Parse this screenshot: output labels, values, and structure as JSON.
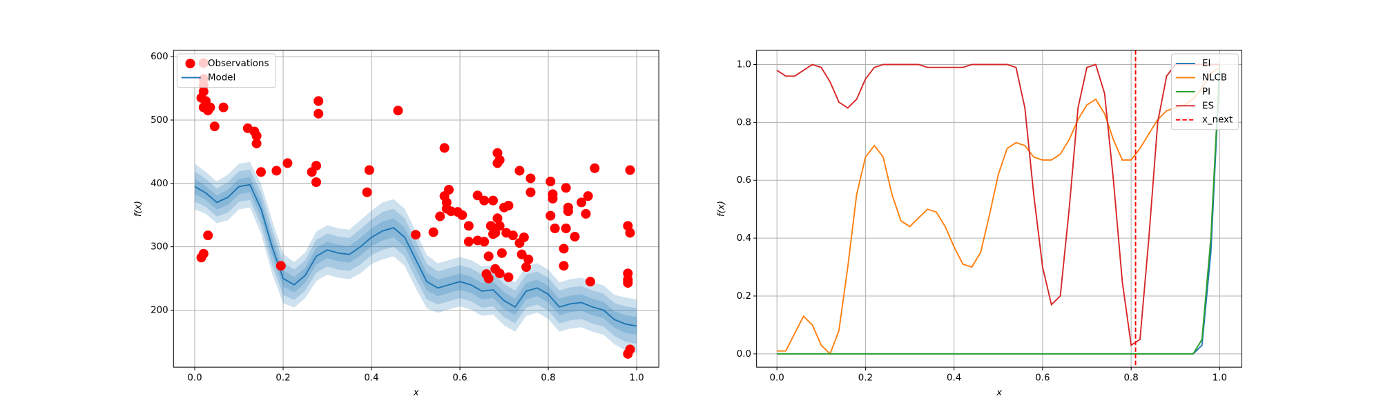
{
  "chart_data": [
    {
      "type": "scatter",
      "xlabel": "x",
      "ylabel": "f(x)",
      "xlim": [
        -0.048,
        1.05
      ],
      "ylim": [
        110,
        610
      ],
      "xticks": [
        {
          "value": 0,
          "label": "0.0"
        },
        {
          "value": 0.2,
          "label": "0.2"
        },
        {
          "value": 0.4,
          "label": "0.4"
        },
        {
          "value": 0.6,
          "label": "0.6"
        },
        {
          "value": 0.8,
          "label": "0.8"
        },
        {
          "value": 1,
          "label": "1.0"
        }
      ],
      "yticks": [
        200,
        300,
        400,
        500,
        600
      ],
      "grid": true,
      "legend": "upper left",
      "series": [
        {
          "name": "Observations",
          "color": "#ff0000",
          "x": [
            0.02,
            0.02,
            0.02,
            0.02,
            0.015,
            0.025,
            0.02,
            0.03,
            0.035,
            0.045,
            0.065,
            0.12,
            0.135,
            0.14,
            0.14,
            0.15,
            0.185,
            0.21,
            0.265,
            0.275,
            0.275,
            0.28,
            0.28,
            0.39,
            0.395,
            0.46,
            0.5,
            0.54,
            0.555,
            0.565,
            0.565,
            0.57,
            0.57,
            0.575,
            0.58,
            0.595,
            0.605,
            0.62,
            0.62,
            0.64,
            0.64,
            0.655,
            0.655,
            0.66,
            0.665,
            0.665,
            0.67,
            0.675,
            0.675,
            0.68,
            0.68,
            0.685,
            0.685,
            0.685,
            0.69,
            0.69,
            0.69,
            0.695,
            0.7,
            0.705,
            0.71,
            0.71,
            0.72,
            0.735,
            0.735,
            0.74,
            0.745,
            0.75,
            0.755,
            0.76,
            0.76,
            0.805,
            0.805,
            0.81,
            0.81,
            0.815,
            0.835,
            0.835,
            0.84,
            0.84,
            0.845,
            0.845,
            0.86,
            0.875,
            0.885,
            0.89,
            0.895,
            0.905,
            0.98,
            0.985,
            0.985,
            0.98,
            0.98,
            0.98,
            0.98,
            0.985,
            0.195,
            0.03,
            0.015,
            0.02
          ],
          "values": [
            590,
            565,
            555,
            545,
            535,
            530,
            520,
            515,
            520,
            490,
            520,
            487,
            482,
            475,
            463,
            418,
            420,
            432,
            418,
            428,
            402,
            530,
            510,
            386,
            421,
            515,
            319,
            323,
            348,
            456,
            380,
            370,
            360,
            390,
            356,
            355,
            350,
            333,
            308,
            310,
            381,
            308,
            373,
            257,
            250,
            285,
            333,
            373,
            320,
            322,
            265,
            345,
            432,
            448,
            437,
            258,
            333,
            290,
            362,
            322,
            365,
            252,
            318,
            420,
            306,
            288,
            315,
            268,
            280,
            408,
            386,
            403,
            349,
            383,
            376,
            329,
            297,
            270,
            329,
            393,
            362,
            356,
            316,
            370,
            352,
            380,
            245,
            424,
            333,
            322,
            421,
            258,
            248,
            243,
            131,
            138,
            270,
            318,
            283,
            289
          ]
        }
      ],
      "model": {
        "name": "Model",
        "color": "#1f77b4",
        "sigma_levels": [
          1,
          2,
          3
        ],
        "x": [
          0,
          0.025,
          0.05,
          0.075,
          0.1,
          0.125,
          0.15,
          0.175,
          0.2,
          0.225,
          0.25,
          0.275,
          0.3,
          0.325,
          0.35,
          0.375,
          0.4,
          0.425,
          0.45,
          0.475,
          0.5,
          0.525,
          0.55,
          0.575,
          0.6,
          0.625,
          0.65,
          0.675,
          0.7,
          0.725,
          0.75,
          0.775,
          0.8,
          0.825,
          0.85,
          0.875,
          0.9,
          0.925,
          0.95,
          0.975,
          1
        ],
        "mean": [
          395,
          385,
          370,
          378,
          395,
          398,
          360,
          300,
          250,
          240,
          255,
          285,
          295,
          290,
          288,
          300,
          315,
          325,
          330,
          315,
          280,
          245,
          235,
          240,
          245,
          240,
          230,
          232,
          215,
          205,
          230,
          235,
          225,
          205,
          210,
          212,
          205,
          200,
          185,
          178,
          175
        ],
        "std": [
          12,
          11,
          11,
          12,
          12,
          12,
          13,
          14,
          13,
          12,
          12,
          13,
          13,
          13,
          13,
          14,
          14,
          15,
          15,
          15,
          15,
          14,
          13,
          13,
          13,
          13,
          13,
          13,
          13,
          13,
          13,
          13,
          13,
          13,
          13,
          13,
          13,
          13,
          13,
          14,
          14
        ]
      }
    },
    {
      "type": "line",
      "xlabel": "x",
      "ylabel": "f(x)",
      "xlim": [
        -0.046,
        1.05
      ],
      "ylim": [
        -0.046,
        1.049
      ],
      "xticks": [
        {
          "value": 0,
          "label": "0.0"
        },
        {
          "value": 0.2,
          "label": "0.2"
        },
        {
          "value": 0.4,
          "label": "0.4"
        },
        {
          "value": 0.6,
          "label": "0.6"
        },
        {
          "value": 0.8,
          "label": "0.8"
        },
        {
          "value": 1,
          "label": "1.0"
        }
      ],
      "yticks": [
        {
          "value": 0,
          "label": "0.0"
        },
        {
          "value": 0.2,
          "label": "0.2"
        },
        {
          "value": 0.4,
          "label": "0.4"
        },
        {
          "value": 0.6,
          "label": "0.6"
        },
        {
          "value": 0.8,
          "label": "0.8"
        },
        {
          "value": 1,
          "label": "1.0"
        }
      ],
      "grid": true,
      "legend": "upper right",
      "x": [
        0,
        0.02,
        0.04,
        0.06,
        0.08,
        0.1,
        0.12,
        0.14,
        0.16,
        0.18,
        0.2,
        0.22,
        0.24,
        0.26,
        0.28,
        0.3,
        0.32,
        0.34,
        0.36,
        0.38,
        0.4,
        0.42,
        0.44,
        0.46,
        0.48,
        0.5,
        0.52,
        0.54,
        0.56,
        0.58,
        0.6,
        0.62,
        0.64,
        0.66,
        0.68,
        0.7,
        0.72,
        0.74,
        0.76,
        0.78,
        0.8,
        0.82,
        0.84,
        0.86,
        0.88,
        0.9,
        0.92,
        0.94,
        0.96,
        0.98,
        1
      ],
      "series": [
        {
          "name": "EI",
          "color": "#1f77b4",
          "values": [
            0,
            0,
            0,
            0,
            0,
            0,
            0,
            0,
            0,
            0,
            0,
            0,
            0,
            0,
            0,
            0,
            0,
            0,
            0,
            0,
            0,
            0,
            0,
            0,
            0,
            0,
            0,
            0,
            0,
            0,
            0,
            0,
            0,
            0,
            0,
            0,
            0,
            0,
            0,
            0,
            0,
            0,
            0,
            0,
            0,
            0,
            0,
            0,
            0.03,
            0.35,
            0.98
          ]
        },
        {
          "name": "NLCB",
          "color": "#ff7f0e",
          "values": [
            0.01,
            0.01,
            0.07,
            0.13,
            0.1,
            0.03,
            0,
            0.08,
            0.3,
            0.55,
            0.68,
            0.72,
            0.68,
            0.55,
            0.46,
            0.44,
            0.47,
            0.5,
            0.49,
            0.44,
            0.37,
            0.31,
            0.3,
            0.35,
            0.48,
            0.62,
            0.71,
            0.73,
            0.72,
            0.68,
            0.67,
            0.67,
            0.69,
            0.74,
            0.81,
            0.86,
            0.88,
            0.83,
            0.74,
            0.67,
            0.67,
            0.71,
            0.76,
            0.81,
            0.84,
            0.85,
            0.86,
            0.88,
            0.92,
            0.97,
            0.99
          ]
        },
        {
          "name": "PI",
          "color": "#2ca02c",
          "values": [
            0,
            0,
            0,
            0,
            0,
            0,
            0,
            0,
            0,
            0,
            0,
            0,
            0,
            0,
            0,
            0,
            0,
            0,
            0,
            0,
            0,
            0,
            0,
            0,
            0,
            0,
            0,
            0,
            0,
            0,
            0,
            0,
            0,
            0,
            0,
            0,
            0,
            0,
            0,
            0,
            0,
            0,
            0,
            0,
            0,
            0,
            0,
            0,
            0.05,
            0.4,
            1
          ]
        },
        {
          "name": "ES",
          "color": "#d62728",
          "values": [
            0.98,
            0.96,
            0.96,
            0.98,
            1,
            0.99,
            0.94,
            0.87,
            0.85,
            0.88,
            0.95,
            0.99,
            1,
            1,
            1,
            1,
            1,
            0.99,
            0.99,
            0.99,
            0.99,
            0.99,
            1,
            1,
            1,
            1,
            1,
            0.99,
            0.85,
            0.55,
            0.3,
            0.17,
            0.2,
            0.5,
            0.85,
            0.99,
            1,
            0.9,
            0.6,
            0.25,
            0.03,
            0.05,
            0.4,
            0.8,
            0.96,
            1,
            1,
            1,
            1,
            1,
            1
          ]
        }
      ],
      "vlines": [
        {
          "name": "x_next",
          "color": "#ff0000",
          "x": 0.81
        }
      ]
    }
  ]
}
